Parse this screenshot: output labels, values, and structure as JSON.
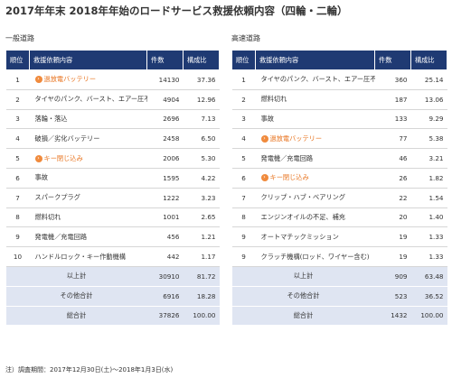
{
  "title": "2017年年末 2018年年始のロードサービス救援依頼内容（四輪・二輪）",
  "headers": {
    "rank": "順位",
    "item": "救援依頼内容",
    "count": "件数",
    "ratio": "構成比"
  },
  "left": {
    "section": "一般道路",
    "rows": [
      {
        "rank": "1",
        "item": "過放電バッテリー",
        "count": "14130",
        "ratio": "37.36",
        "highlight": true
      },
      {
        "rank": "2",
        "item": "タイヤのパンク、バースト、エアー圧不足",
        "count": "4904",
        "ratio": "12.96",
        "highlight": false
      },
      {
        "rank": "3",
        "item": "落輪・落込",
        "count": "2696",
        "ratio": "7.13",
        "highlight": false
      },
      {
        "rank": "4",
        "item": "破損／劣化バッテリー",
        "count": "2458",
        "ratio": "6.50",
        "highlight": false
      },
      {
        "rank": "5",
        "item": "キー閉じ込み",
        "count": "2006",
        "ratio": "5.30",
        "highlight": true
      },
      {
        "rank": "6",
        "item": "事故",
        "count": "1595",
        "ratio": "4.22",
        "highlight": false
      },
      {
        "rank": "7",
        "item": "スパークプラグ",
        "count": "1222",
        "ratio": "3.23",
        "highlight": false
      },
      {
        "rank": "8",
        "item": "燃料切れ",
        "count": "1001",
        "ratio": "2.65",
        "highlight": false
      },
      {
        "rank": "9",
        "item": "発電機／充電回路",
        "count": "456",
        "ratio": "1.21",
        "highlight": false
      },
      {
        "rank": "10",
        "item": "ハンドルロック・キー作動機構",
        "count": "442",
        "ratio": "1.17",
        "highlight": false
      }
    ],
    "summary": [
      {
        "label": "以上計",
        "count": "30910",
        "ratio": "81.72"
      },
      {
        "label": "その他合計",
        "count": "6916",
        "ratio": "18.28"
      },
      {
        "label": "総合計",
        "count": "37826",
        "ratio": "100.00"
      }
    ]
  },
  "right": {
    "section": "高速道路",
    "rows": [
      {
        "rank": "1",
        "item": "タイヤのパンク、バースト、エアー圧不足",
        "count": "360",
        "ratio": "25.14",
        "highlight": false
      },
      {
        "rank": "2",
        "item": "燃料切れ",
        "count": "187",
        "ratio": "13.06",
        "highlight": false
      },
      {
        "rank": "3",
        "item": "事故",
        "count": "133",
        "ratio": "9.29",
        "highlight": false
      },
      {
        "rank": "4",
        "item": "過放電バッテリー",
        "count": "77",
        "ratio": "5.38",
        "highlight": true
      },
      {
        "rank": "5",
        "item": "発電機／充電回路",
        "count": "46",
        "ratio": "3.21",
        "highlight": false
      },
      {
        "rank": "6",
        "item": "キー閉じ込み",
        "count": "26",
        "ratio": "1.82",
        "highlight": true
      },
      {
        "rank": "7",
        "item": "クリップ・ハブ・ベアリング",
        "count": "22",
        "ratio": "1.54",
        "highlight": false
      },
      {
        "rank": "8",
        "item": "エンジンオイルの不足、補充",
        "count": "20",
        "ratio": "1.40",
        "highlight": false
      },
      {
        "rank": "9",
        "item": "オートマチックミッション",
        "count": "19",
        "ratio": "1.33",
        "highlight": false
      },
      {
        "rank": "9",
        "item": "クラッチ機構(ロッド、ワイヤー含む)",
        "count": "19",
        "ratio": "1.33",
        "highlight": false
      }
    ],
    "summary": [
      {
        "label": "以上計",
        "count": "909",
        "ratio": "63.48"
      },
      {
        "label": "その他合計",
        "count": "523",
        "ratio": "36.52"
      },
      {
        "label": "総合計",
        "count": "1432",
        "ratio": "100.00"
      }
    ]
  },
  "note": "注）調査期間：2017年12月30日(土)～2018年1月3日(水)",
  "colors": {
    "header_bg": "#1f3a73",
    "summary_bg": "#dfe5f2",
    "highlight": "#e8731e",
    "bullet": "#f08a3c"
  },
  "icons": {
    "bullet": "chevron-right-icon"
  }
}
